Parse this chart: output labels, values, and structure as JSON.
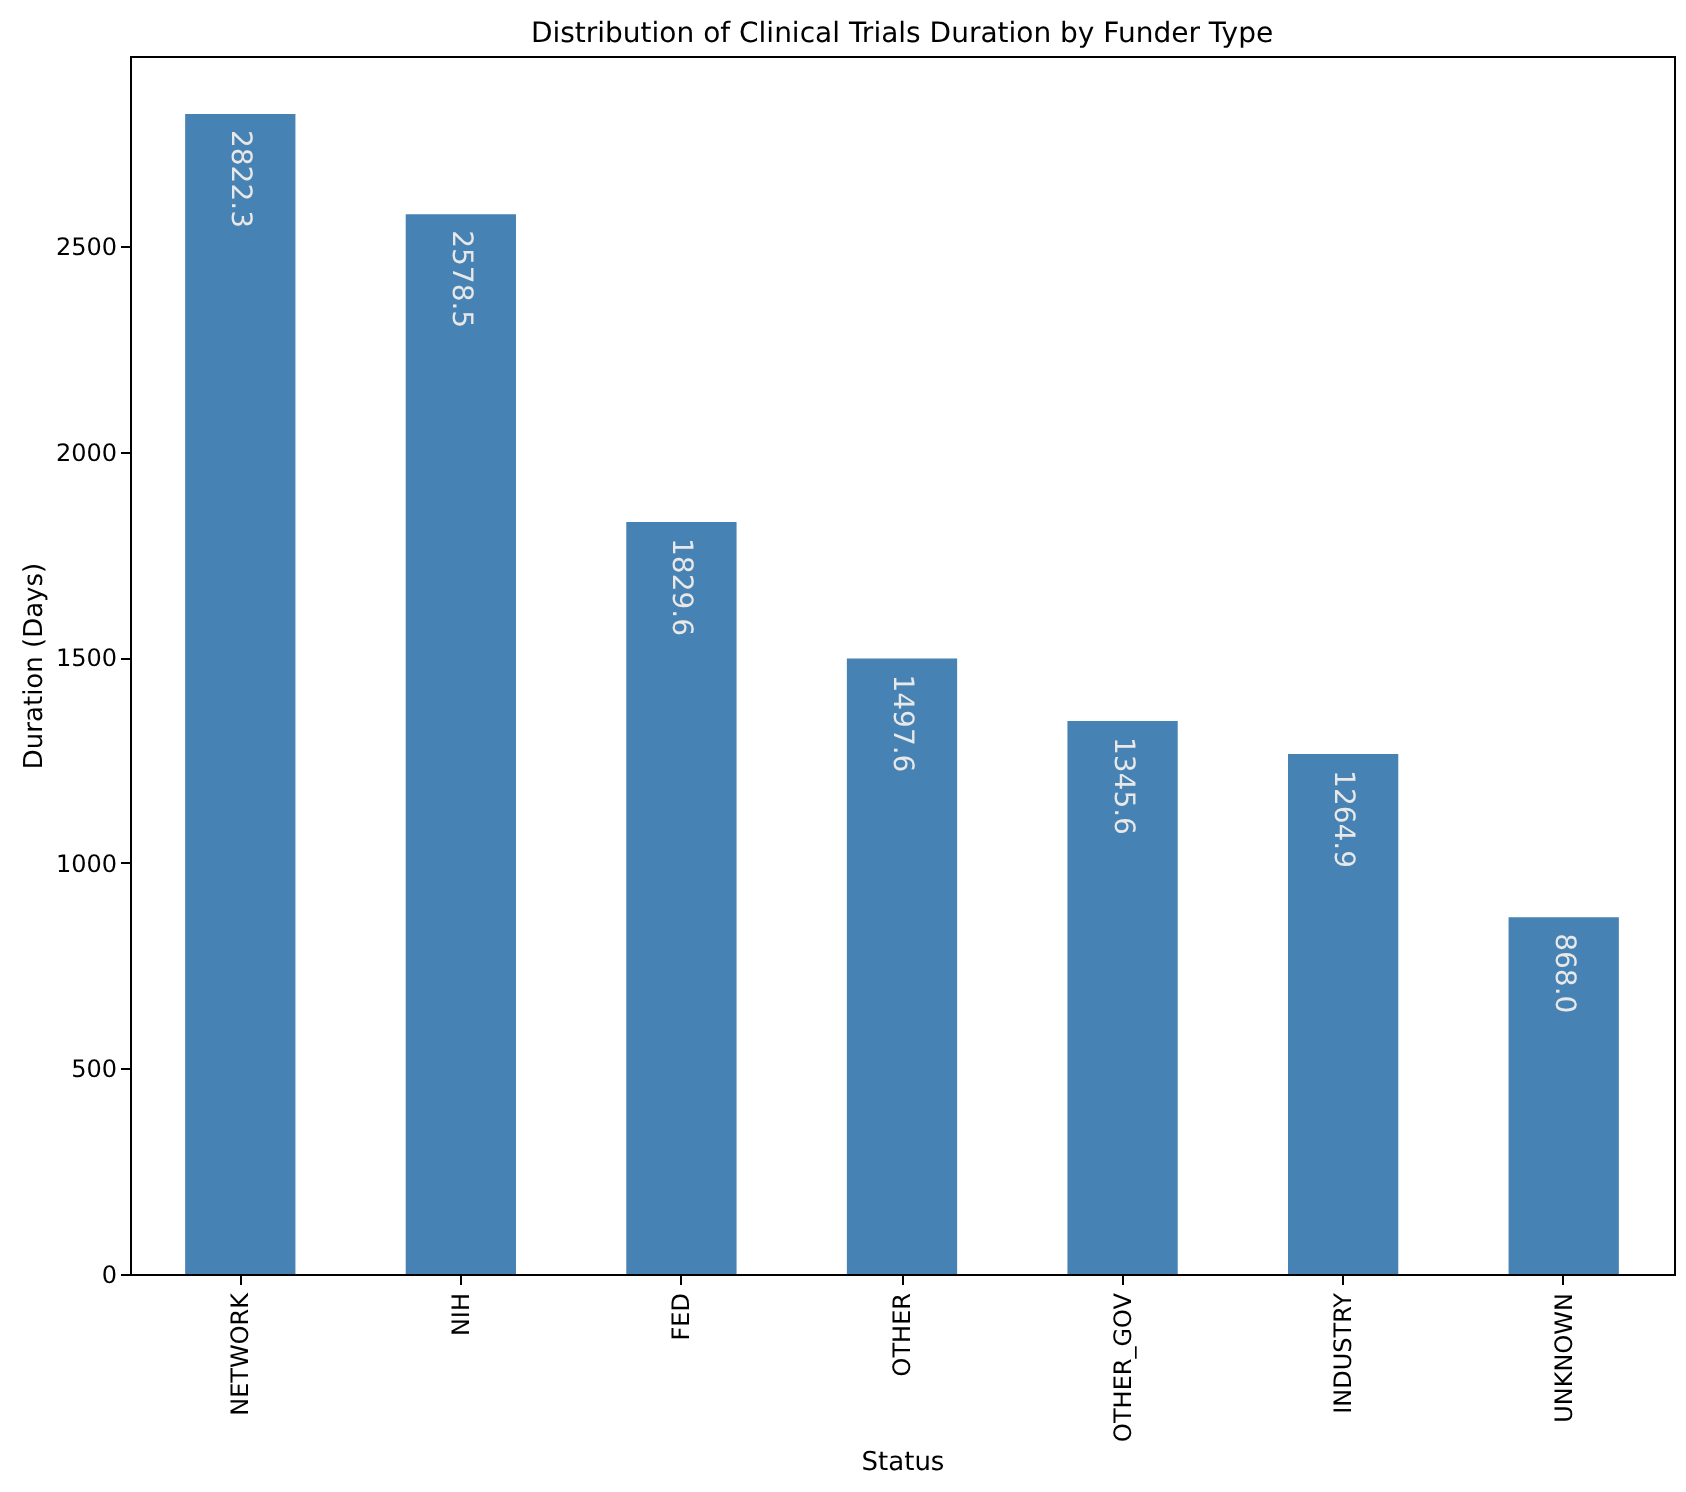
{
  "chart_data": {
    "type": "bar",
    "title": "Distribution of Clinical Trials Duration by Funder Type",
    "xlabel": "Status",
    "ylabel": "Duration (Days)",
    "categories": [
      "NETWORK",
      "NIH",
      "FED",
      "OTHER",
      "OTHER_GOV",
      "INDUSTRY",
      "UNKNOWN"
    ],
    "values": [
      2822.3,
      2578.5,
      1829.6,
      1497.6,
      1345.6,
      1264.9,
      868.0
    ],
    "value_labels": [
      "2822.3",
      "2578.5",
      "1829.6",
      "1497.6",
      "1345.6",
      "1264.9",
      "868.0"
    ],
    "color": "#4682b4",
    "ylim": [
      0,
      2963.4
    ],
    "yticks": [
      0,
      500,
      1000,
      1500,
      2000,
      2500
    ]
  }
}
